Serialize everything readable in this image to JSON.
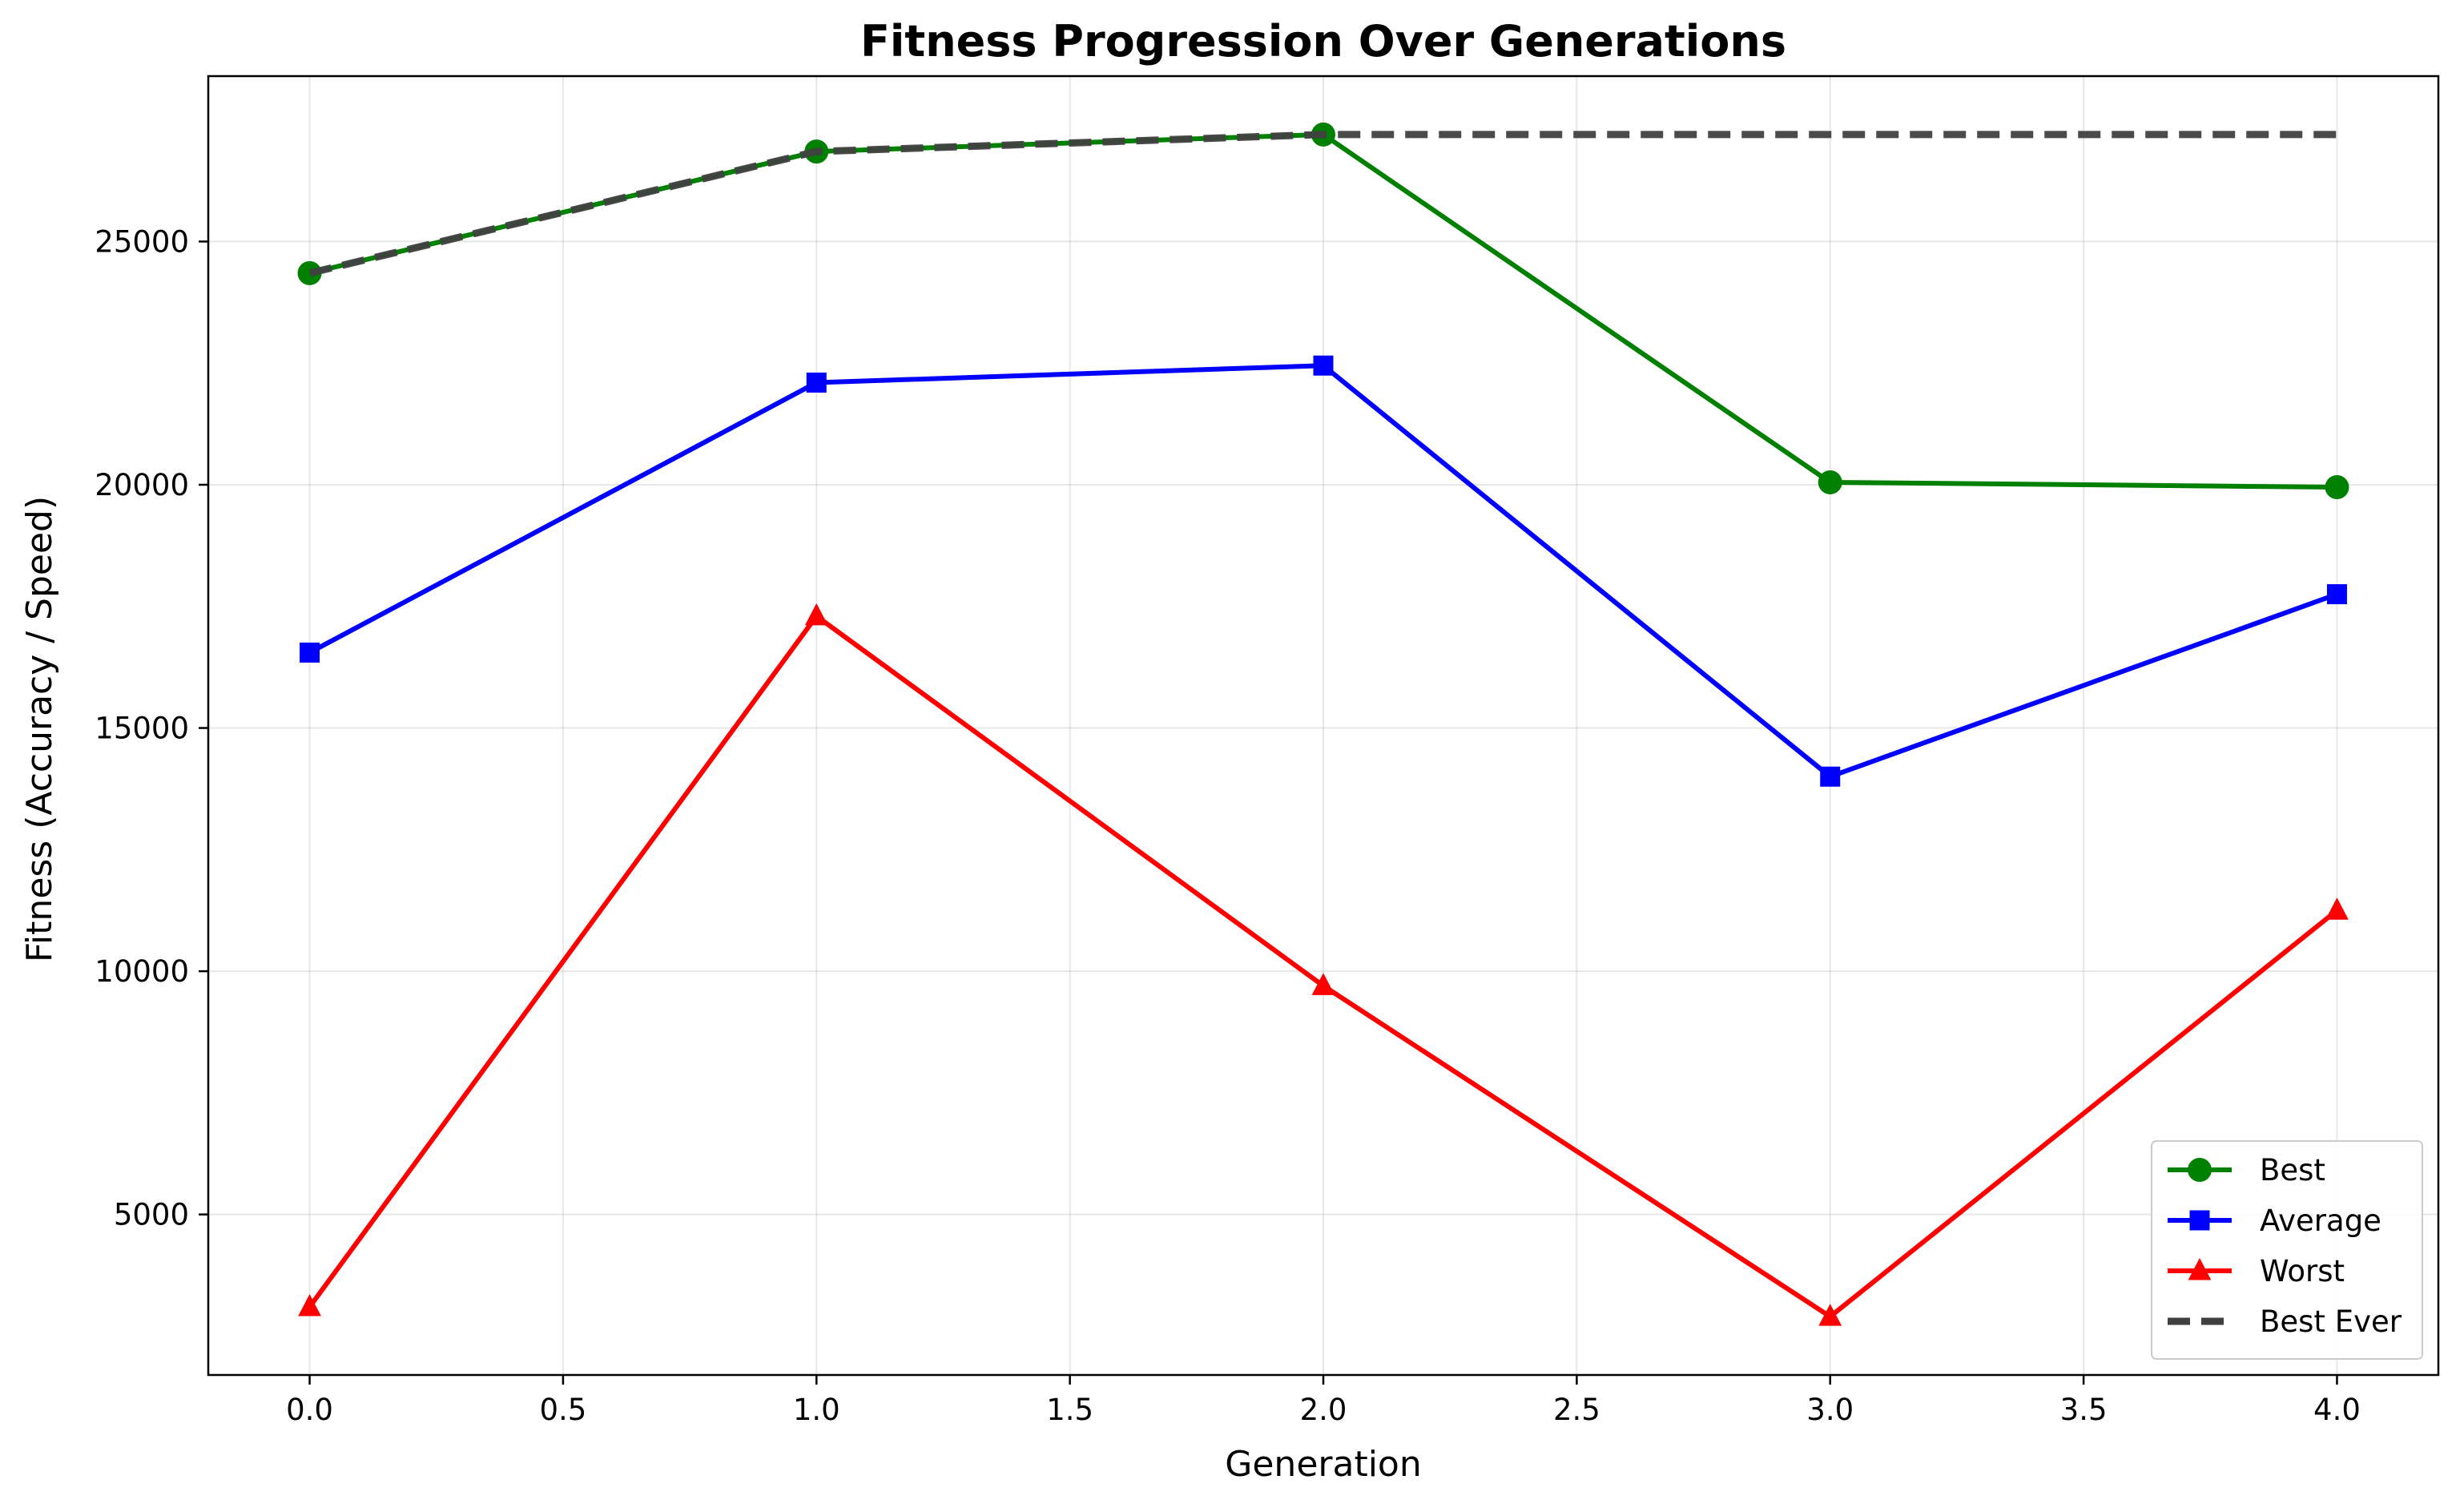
{
  "chart_data": {
    "type": "line",
    "title": "Fitness Progression Over Generations",
    "xlabel": "Generation",
    "ylabel": "Fitness (Accuracy / Speed)",
    "x": [
      0,
      1,
      2,
      3,
      4
    ],
    "xlim": [
      -0.2,
      4.2
    ],
    "ylim": [
      1700,
      28400
    ],
    "xticks": [
      0.0,
      0.5,
      1.0,
      1.5,
      2.0,
      2.5,
      3.0,
      3.5,
      4.0
    ],
    "xtick_labels": [
      "0.0",
      "0.5",
      "1.0",
      "1.5",
      "2.0",
      "2.5",
      "3.0",
      "3.5",
      "4.0"
    ],
    "yticks": [
      5000,
      10000,
      15000,
      20000,
      25000
    ],
    "ytick_labels": [
      "5000",
      "10000",
      "15000",
      "20000",
      "25000"
    ],
    "grid": true,
    "legend_position": "bottom-right",
    "series": [
      {
        "name": "Best",
        "color": "#008000",
        "marker": "circle",
        "style": "solid",
        "values": [
          24350,
          26850,
          27200,
          20050,
          19950
        ]
      },
      {
        "name": "Average",
        "color": "#0000ff",
        "marker": "square",
        "style": "solid",
        "values": [
          16550,
          22100,
          22450,
          14000,
          17750
        ]
      },
      {
        "name": "Worst",
        "color": "#ff0000",
        "marker": "triangle",
        "style": "solid",
        "values": [
          3100,
          17300,
          9700,
          2900,
          11250
        ]
      },
      {
        "name": "Best Ever",
        "color": "#404040",
        "marker": "none",
        "style": "dashed",
        "values": [
          24350,
          26850,
          27200,
          27200,
          27200
        ]
      }
    ]
  }
}
